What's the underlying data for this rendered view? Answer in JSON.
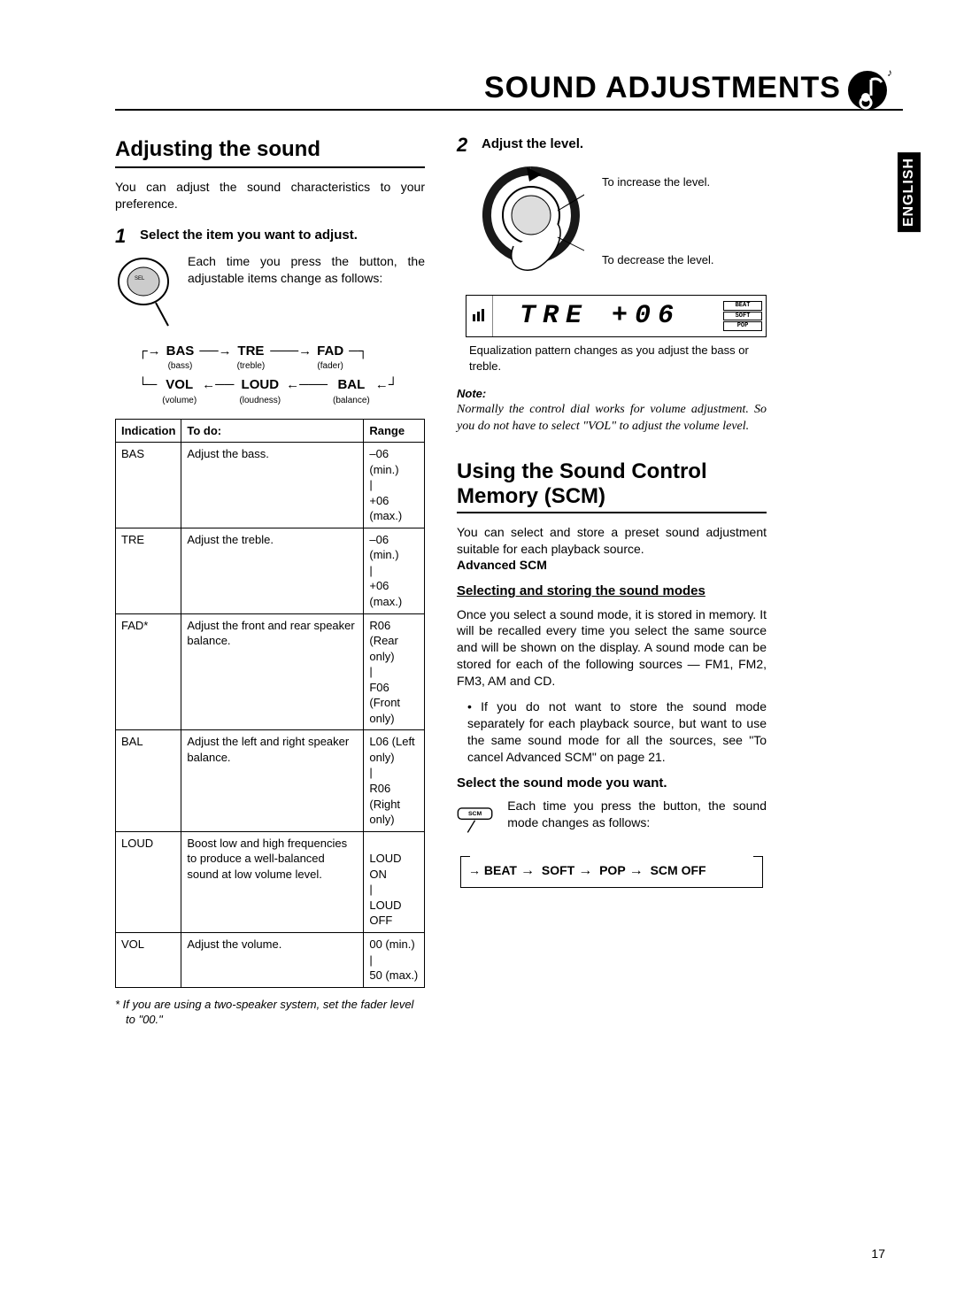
{
  "page_title": "SOUND ADJUSTMENTS",
  "lang_tab": "ENGLISH",
  "page_number": "17",
  "left": {
    "heading": "Adjusting the sound",
    "intro": "You can adjust the sound characteristics to your preference.",
    "step1_num": "1",
    "step1_title": "Select the item you want to adjust.",
    "step1_text": "Each time you press the button, the adjustable items change as follows:",
    "cycle": {
      "row1": [
        {
          "big": "BAS",
          "small": "(bass)"
        },
        {
          "big": "TRE",
          "small": "(treble)"
        },
        {
          "big": "FAD",
          "small": "(fader)"
        }
      ],
      "row2": [
        {
          "big": "VOL",
          "small": "(volume)"
        },
        {
          "big": "LOUD",
          "small": "(loudness)"
        },
        {
          "big": "BAL",
          "small": "(balance)"
        }
      ]
    },
    "table": {
      "headers": [
        "Indication",
        "To do:",
        "Range"
      ],
      "rows": [
        [
          "BAS",
          "Adjust the bass.",
          "–06 (min.)\n   |\n+06 (max.)"
        ],
        [
          "TRE",
          "Adjust the treble.",
          "–06 (min.)\n   |\n+06 (max.)"
        ],
        [
          "FAD*",
          "Adjust the front and rear speaker balance.",
          "R06 (Rear only)\n   |\nF06  (Front only)"
        ],
        [
          "BAL",
          "Adjust the left and right speaker balance.",
          "L06 (Left only)\n   |\nR06  (Right only)"
        ],
        [
          "LOUD",
          "Boost low and high frequencies to produce a well-balanced sound at low volume level.",
          "\nLOUD ON\n   |\nLOUD OFF"
        ],
        [
          "VOL",
          "Adjust the volume.",
          "00 (min.)\n   |\n50 (max.)"
        ]
      ]
    },
    "footnote": "* If you are using a two-speaker system, set the fader level to \"00.\""
  },
  "right": {
    "step2_num": "2",
    "step2_title": "Adjust the level.",
    "increase_label": "To increase the level.",
    "decrease_label": "To decrease the level.",
    "lcd_text": "TRE   +06",
    "lcd_indicators": [
      "BEAT",
      "SOFT",
      "POP"
    ],
    "caption": "Equalization pattern changes as you adjust the bass or treble.",
    "note_head": "Note:",
    "note_body": "Normally the control dial works for volume adjustment. So you do not have to select \"VOL\" to adjust the volume level.",
    "heading2": "Using the Sound Control Memory (SCM)",
    "scm_intro": "You can select and store a preset sound adjustment suitable for each playback source.",
    "adv_scm": "Advanced SCM",
    "sub_heading": "Selecting and storing the sound modes",
    "scm_p1": "Once you select a sound mode, it is stored in memory. It will be recalled every time you select the same source and will be shown on the display. A sound mode can be stored for each of the following sources — FM1, FM2, FM3, AM and CD.",
    "scm_bullet": "If you do not want to store the sound mode separately for each playback source, but want to use the same sound mode for all the sources, see \"To cancel Advanced SCM\" on page 21.",
    "select_mode_title": "Select the sound mode you want.",
    "select_mode_text": "Each time you press the button, the sound mode changes as follows:",
    "mode_cycle": [
      "BEAT",
      "SOFT",
      "POP",
      "SCM OFF"
    ],
    "scm_btn_label": "SCM"
  },
  "colors": {
    "text": "#000000",
    "bg": "#ffffff",
    "rule": "#000000"
  }
}
